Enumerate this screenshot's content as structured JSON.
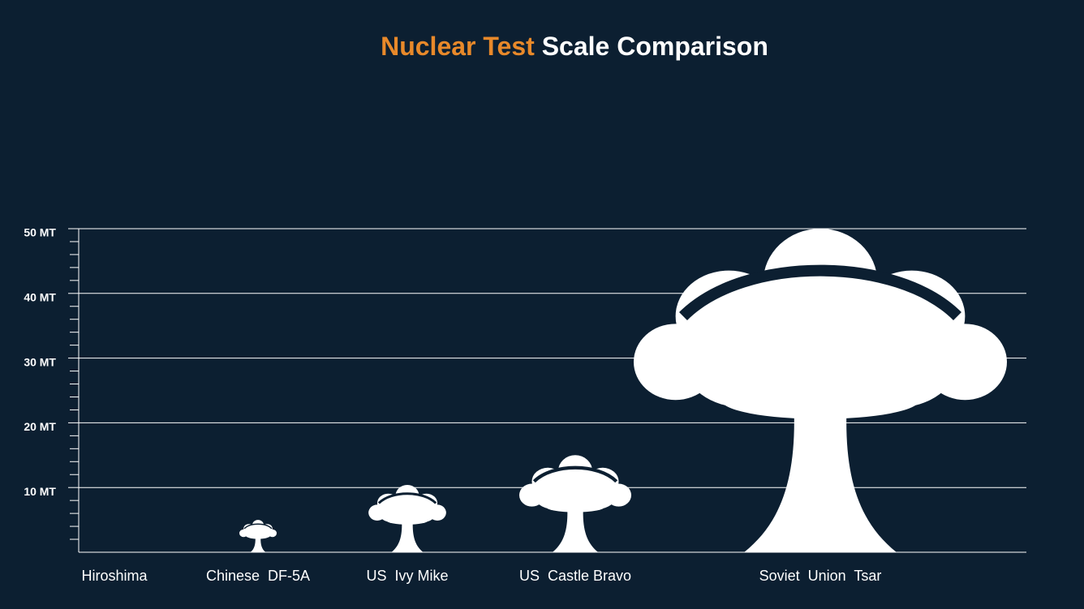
{
  "chart_data": {
    "type": "pictograph",
    "title_parts": [
      {
        "text": "Nuclear Test",
        "color": "#e8892a"
      },
      {
        "text": "Scale Comparison",
        "color": "#ffffff"
      }
    ],
    "categories": [
      "Hiroshima",
      "Chinese  DF-5A",
      "US  Ivy Mike",
      "US  Castle Bravo",
      "Soviet  Union  Tsar"
    ],
    "values": [
      0.015,
      5,
      10.4,
      15,
      50
    ],
    "color": "#ffffff",
    "ylim": [
      0,
      50
    ],
    "yticks": [
      {
        "value": 10,
        "label": "10 MT"
      },
      {
        "value": 20,
        "label": "20 MT"
      },
      {
        "value": 30,
        "label": "30 MT"
      },
      {
        "value": 40,
        "label": "40 MT"
      },
      {
        "value": 50,
        "label": "50 MT"
      }
    ],
    "minor_yticks": [
      2,
      4,
      6,
      8,
      12,
      14,
      16,
      18,
      22,
      24,
      26,
      28,
      32,
      34,
      36,
      38,
      42,
      44,
      46,
      48
    ],
    "grid": true
  }
}
